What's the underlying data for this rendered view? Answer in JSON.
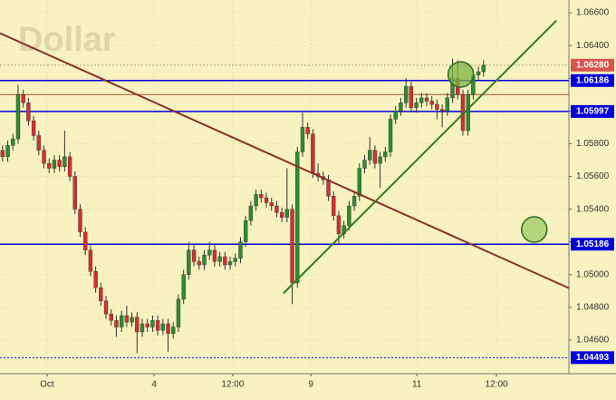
{
  "chart_data": {
    "type": "candlestick",
    "title": "Dollar",
    "x": [
      0,
      1,
      2,
      3,
      4,
      5,
      6,
      7,
      8,
      9,
      10,
      11,
      12,
      13,
      14,
      15,
      16,
      17,
      18,
      19,
      20,
      21,
      22,
      23,
      24,
      25,
      26,
      27,
      28,
      29,
      30,
      31,
      32,
      33,
      34,
      35,
      36,
      37,
      38,
      39,
      40,
      41,
      42,
      43,
      44,
      45,
      46,
      47,
      48,
      49,
      50,
      51,
      52,
      53,
      54,
      55,
      56,
      57,
      58,
      59,
      60,
      61,
      62,
      63,
      64,
      65,
      66,
      67,
      68,
      69,
      70,
      71,
      72,
      73,
      74,
      75,
      76,
      77,
      78,
      79,
      80,
      81,
      82,
      83,
      84,
      85,
      86,
      87,
      88,
      89,
      90,
      91,
      92,
      93
    ],
    "open": [
      1.0576,
      1.0572,
      1.0579,
      1.0583,
      1.061,
      1.0605,
      1.0594,
      1.0585,
      1.0576,
      1.0568,
      1.0565,
      1.057,
      1.0566,
      1.0572,
      1.056,
      1.054,
      1.0526,
      1.0515,
      1.0502,
      1.0492,
      1.0484,
      1.0476,
      1.0472,
      1.0468,
      1.0475,
      1.0471,
      1.0474,
      1.0465,
      1.047,
      1.0468,
      1.0472,
      1.0466,
      1.047,
      1.0464,
      1.0468,
      1.0485,
      1.05,
      1.0515,
      1.0508,
      1.0506,
      1.0512,
      1.0515,
      1.0508,
      1.0511,
      1.0506,
      1.0508,
      1.051,
      1.052,
      1.0533,
      1.0542,
      1.0549,
      1.0547,
      1.0544,
      1.0542,
      1.0538,
      1.0535,
      1.054,
      1.0495,
      1.0575,
      1.059,
      1.0586,
      1.0562,
      1.056,
      1.0558,
      1.0548,
      1.0536,
      1.0525,
      1.053,
      1.0542,
      1.0548,
      1.0565,
      1.057,
      1.0576,
      1.0568,
      1.0572,
      1.0575,
      1.0595,
      1.06,
      1.0605,
      1.0615,
      1.0602,
      1.0605,
      1.0608,
      1.0606,
      1.0604,
      1.0601,
      1.06,
      1.0608,
      1.062,
      1.061,
      1.0588,
      1.061,
      1.0622,
      1.0624
    ],
    "high": [
      1.0579,
      1.0582,
      1.0586,
      1.0616,
      1.0613,
      1.0608,
      1.0597,
      1.0588,
      1.0579,
      1.0571,
      1.0573,
      1.0573,
      1.0588,
      1.0575,
      1.0563,
      1.0543,
      1.0529,
      1.0518,
      1.0505,
      1.0495,
      1.0487,
      1.0479,
      1.0475,
      1.0478,
      1.0481,
      1.0477,
      1.0477,
      1.0473,
      1.0473,
      1.0475,
      1.0475,
      1.0473,
      1.0473,
      1.0471,
      1.0488,
      1.0503,
      1.052,
      1.0518,
      1.0511,
      1.0515,
      1.052,
      1.0518,
      1.0514,
      1.0514,
      1.0511,
      1.0513,
      1.0523,
      1.0536,
      1.0545,
      1.0552,
      1.0552,
      1.055,
      1.0547,
      1.0545,
      1.0541,
      1.0565,
      1.0543,
      1.0578,
      1.0599,
      1.0593,
      1.0589,
      1.0568,
      1.0563,
      1.0561,
      1.0551,
      1.0539,
      1.0533,
      1.0545,
      1.0551,
      1.0568,
      1.0573,
      1.0584,
      1.0579,
      1.0575,
      1.0578,
      1.0598,
      1.0603,
      1.0608,
      1.062,
      1.0618,
      1.0608,
      1.0611,
      1.0611,
      1.0609,
      1.0607,
      1.0604,
      1.0611,
      1.0632,
      1.0631,
      1.0613,
      1.0613,
      1.0625,
      1.0627,
      1.0631
    ],
    "low": [
      1.0569,
      1.0569,
      1.0576,
      1.058,
      1.0602,
      1.0591,
      1.0582,
      1.0573,
      1.0565,
      1.0562,
      1.0562,
      1.0563,
      1.0563,
      1.0557,
      1.0537,
      1.0523,
      1.0512,
      1.0499,
      1.0489,
      1.0481,
      1.0473,
      1.0469,
      1.0462,
      1.0465,
      1.0468,
      1.0468,
      1.0452,
      1.0462,
      1.0465,
      1.0465,
      1.0463,
      1.0463,
      1.0453,
      1.0461,
      1.0465,
      1.0482,
      1.0497,
      1.0505,
      1.0503,
      1.0503,
      1.0509,
      1.0505,
      1.0505,
      1.0503,
      1.0503,
      1.0505,
      1.0507,
      1.0517,
      1.053,
      1.0539,
      1.0544,
      1.0541,
      1.0539,
      1.0535,
      1.0532,
      1.0532,
      1.0482,
      1.0492,
      1.0572,
      1.0583,
      1.0559,
      1.0557,
      1.0555,
      1.0545,
      1.0533,
      1.0518,
      1.0522,
      1.0527,
      1.0539,
      1.0545,
      1.0562,
      1.0567,
      1.0565,
      1.0553,
      1.0569,
      1.0572,
      1.0592,
      1.0597,
      1.0602,
      1.0599,
      1.0599,
      1.0602,
      1.0603,
      1.0601,
      1.0595,
      1.059,
      1.0597,
      1.0605,
      1.0607,
      1.0585,
      1.0585,
      1.0607,
      1.0619,
      1.0621
    ],
    "close": [
      1.0572,
      1.0579,
      1.0583,
      1.061,
      1.0605,
      1.0594,
      1.0585,
      1.0576,
      1.0568,
      1.0565,
      1.057,
      1.0566,
      1.0572,
      1.056,
      1.054,
      1.0526,
      1.0515,
      1.0502,
      1.0492,
      1.0484,
      1.0476,
      1.0472,
      1.0468,
      1.0475,
      1.0471,
      1.0474,
      1.0465,
      1.047,
      1.0468,
      1.0472,
      1.0466,
      1.047,
      1.0464,
      1.0468,
      1.0485,
      1.05,
      1.0515,
      1.0508,
      1.0506,
      1.0512,
      1.0515,
      1.0508,
      1.0511,
      1.0506,
      1.0508,
      1.051,
      1.052,
      1.0533,
      1.0542,
      1.0549,
      1.0547,
      1.0544,
      1.0542,
      1.0538,
      1.0535,
      1.054,
      1.0495,
      1.0575,
      1.059,
      1.0586,
      1.0562,
      1.056,
      1.0558,
      1.0548,
      1.0536,
      1.0525,
      1.053,
      1.0542,
      1.0548,
      1.0565,
      1.057,
      1.0576,
      1.0568,
      1.0572,
      1.0575,
      1.0595,
      1.06,
      1.0605,
      1.0615,
      1.0602,
      1.0605,
      1.0608,
      1.0606,
      1.0604,
      1.0601,
      1.06,
      1.0608,
      1.062,
      1.061,
      1.0588,
      1.061,
      1.0622,
      1.0624,
      1.0628
    ],
    "up_color": "#2e8b2e",
    "down_color": "#d32f2f",
    "wick_color": "#333333",
    "xlim": [
      -0.5,
      109.5
    ],
    "xticks": [
      {
        "value": 8.6,
        "label": "Oct"
      },
      {
        "value": 29.3,
        "label": "4"
      },
      {
        "value": 44.5,
        "label": "12:00"
      },
      {
        "value": 59.6,
        "label": "9"
      },
      {
        "value": 80.1,
        "label": "11"
      },
      {
        "value": 95.5,
        "label": "12:00"
      }
    ],
    "ylim": [
      1.04395,
      1.06678
    ],
    "yticks": [
      {
        "value": 1.046,
        "label": "1.04600"
      },
      {
        "value": 1.048,
        "label": "1.04800"
      },
      {
        "value": 1.05,
        "label": "1.05000"
      },
      {
        "value": 1.052,
        "label": "1.05200"
      },
      {
        "value": 1.054,
        "label": "1.05400"
      },
      {
        "value": 1.056,
        "label": "1.05600"
      },
      {
        "value": 1.058,
        "label": "1.05800"
      },
      {
        "value": 1.06,
        "label": "1.06000"
      },
      {
        "value": 1.062,
        "label": "1.06200"
      },
      {
        "value": 1.064,
        "label": "1.06400"
      },
      {
        "value": 1.066,
        "label": "1.06600"
      }
    ],
    "grid": true,
    "levels": [
      {
        "value": 1.0628,
        "label": "1.06280",
        "color": "#d9534f",
        "style": "dotted"
      },
      {
        "value": 1.06186,
        "color": "#0000dd",
        "style": "solid"
      },
      {
        "value": 1.05997,
        "color": "#0000dd",
        "style": "solid"
      },
      {
        "value": 1.05186,
        "color": "#0000dd",
        "style": "solid"
      },
      {
        "value": 1.04493,
        "color": "#0000dd",
        "style": "dotted"
      }
    ],
    "hlines": [
      {
        "value": 1.061,
        "color": "#a0522d"
      }
    ],
    "trendlines": [
      {
        "x": [
          -0.5,
          109.5
        ],
        "values": [
          1.06475,
          1.04918
        ],
        "color": "#8b2e2e"
      },
      {
        "x": [
          54.3,
          107.1
        ],
        "values": [
          1.04886,
          1.06553
        ],
        "color": "#2e7d1e"
      }
    ],
    "circles": [
      {
        "x": 88.6,
        "value": 1.06223,
        "color": "#7cb342"
      },
      {
        "x": 102.8,
        "value": 1.05276,
        "color": "#9ccc65"
      }
    ]
  }
}
